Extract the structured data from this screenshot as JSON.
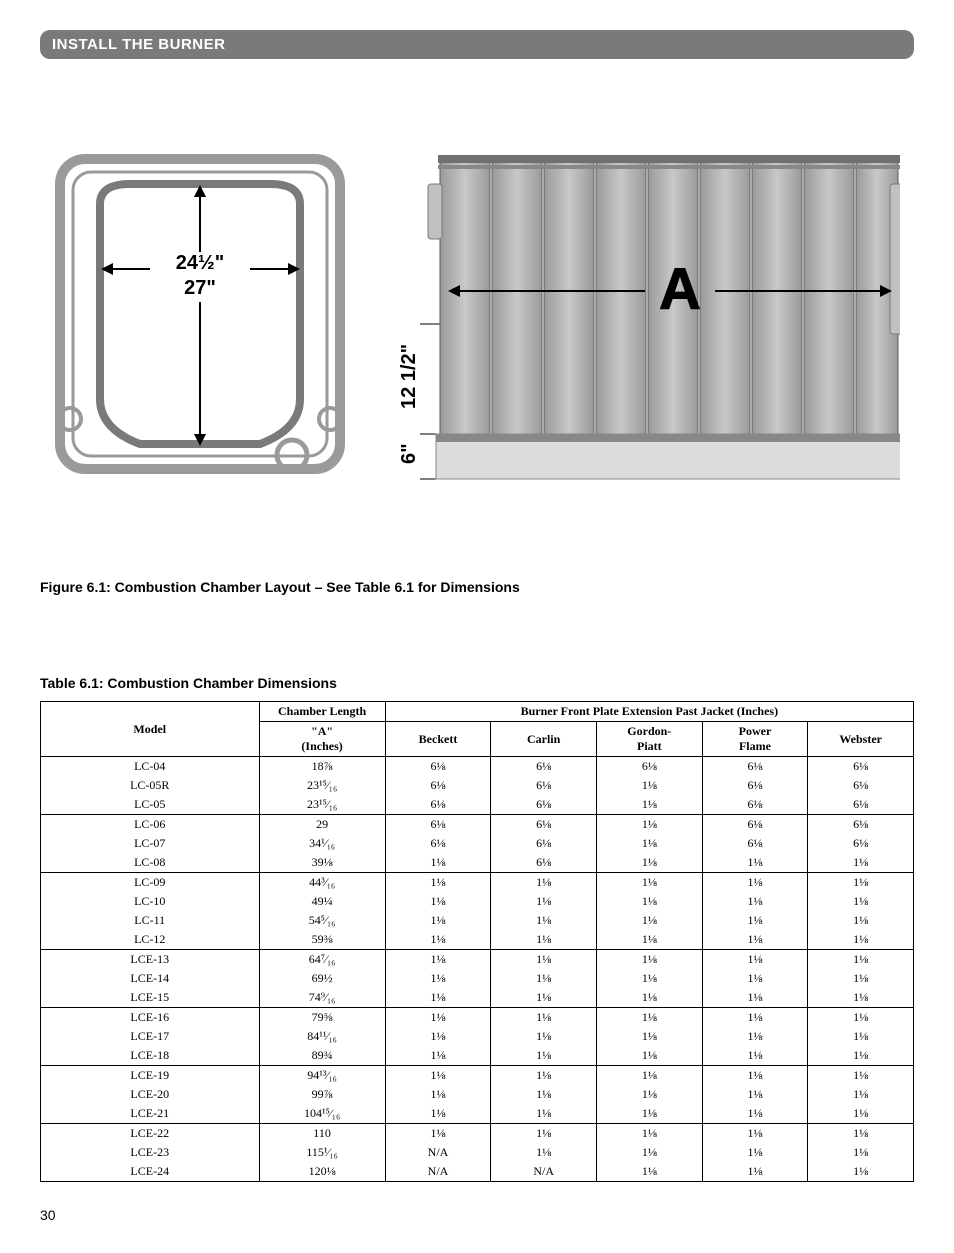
{
  "section_header": "INSTALL THE BURNER",
  "figure": {
    "caption": "Figure 6.1: Combustion Chamber Layout – See Table 6.1 for Dimensions",
    "left_diagram": {
      "dim_width": "24½\"",
      "dim_height": "27\"",
      "frame_color": "#888888",
      "arrow_color": "#000000"
    },
    "right_diagram": {
      "label_A": "A",
      "dim_bottom_left": "6\"",
      "dim_bottom_mid": "12 1/2\"",
      "bar_color": "#a8a8a8",
      "base_color": "#6a6a6a"
    }
  },
  "table": {
    "title": "Table 6.1:  Combustion Chamber Dimensions",
    "header_model": "Model",
    "header_chamber": "Chamber Length",
    "header_chamber_sub": "\"A\" (Inches)",
    "header_burner_span": "Burner Front Plate Extension Past Jacket (Inches)",
    "burner_cols": [
      "Beckett",
      "Carlin",
      "Gordon-Piatt",
      "Power Flame",
      "Webster"
    ],
    "rows": [
      {
        "sep": true,
        "model": "LC-04",
        "a": "18⅞",
        "v": [
          "6⅛",
          "6⅛",
          "6⅛",
          "6⅛",
          "6⅛"
        ]
      },
      {
        "sep": false,
        "model": "LC-05R",
        "a": "23¹⁵⁄₁₆",
        "v": [
          "6⅛",
          "6⅛",
          "1⅛",
          "6⅛",
          "6⅛"
        ]
      },
      {
        "sep": false,
        "model": "LC-05",
        "a": "23¹⁵⁄₁₆",
        "v": [
          "6⅛",
          "6⅛",
          "1⅛",
          "6⅛",
          "6⅛"
        ]
      },
      {
        "sep": true,
        "model": "LC-06",
        "a": "29",
        "v": [
          "6⅛",
          "6⅛",
          "1⅛",
          "6⅛",
          "6⅛"
        ]
      },
      {
        "sep": false,
        "model": "LC-07",
        "a": "34¹⁄₁₆",
        "v": [
          "6⅛",
          "6⅛",
          "1⅛",
          "6⅛",
          "6⅛"
        ]
      },
      {
        "sep": false,
        "model": "LC-08",
        "a": "39⅛",
        "v": [
          "1⅛",
          "6⅛",
          "1⅛",
          "1⅛",
          "1⅛"
        ]
      },
      {
        "sep": true,
        "model": "LC-09",
        "a": "44³⁄₁₆",
        "v": [
          "1⅛",
          "1⅛",
          "1⅛",
          "1⅛",
          "1⅛"
        ]
      },
      {
        "sep": false,
        "model": "LC-10",
        "a": "49¼",
        "v": [
          "1⅛",
          "1⅛",
          "1⅛",
          "1⅛",
          "1⅛"
        ]
      },
      {
        "sep": false,
        "model": "LC-11",
        "a": "54⁵⁄₁₆",
        "v": [
          "1⅛",
          "1⅛",
          "1⅛",
          "1⅛",
          "1⅛"
        ]
      },
      {
        "sep": false,
        "model": "LC-12",
        "a": "59⅜",
        "v": [
          "1⅛",
          "1⅛",
          "1⅛",
          "1⅛",
          "1⅛"
        ]
      },
      {
        "sep": true,
        "model": "LCE-13",
        "a": "64⁷⁄₁₆",
        "v": [
          "1⅛",
          "1⅛",
          "1⅛",
          "1⅛",
          "1⅛"
        ]
      },
      {
        "sep": false,
        "model": "LCE-14",
        "a": "69½",
        "v": [
          "1⅛",
          "1⅛",
          "1⅛",
          "1⅛",
          "1⅛"
        ]
      },
      {
        "sep": false,
        "model": "LCE-15",
        "a": "74⁹⁄₁₆",
        "v": [
          "1⅛",
          "1⅛",
          "1⅛",
          "1⅛",
          "1⅛"
        ]
      },
      {
        "sep": true,
        "model": "LCE-16",
        "a": "79⅝",
        "v": [
          "1⅛",
          "1⅛",
          "1⅛",
          "1⅛",
          "1⅛"
        ]
      },
      {
        "sep": false,
        "model": "LCE-17",
        "a": "84¹¹⁄₁₆",
        "v": [
          "1⅛",
          "1⅛",
          "1⅛",
          "1⅛",
          "1⅛"
        ]
      },
      {
        "sep": false,
        "model": "LCE-18",
        "a": "89¾",
        "v": [
          "1⅛",
          "1⅛",
          "1⅛",
          "1⅛",
          "1⅛"
        ]
      },
      {
        "sep": true,
        "model": "LCE-19",
        "a": "94¹³⁄₁₆",
        "v": [
          "1⅛",
          "1⅛",
          "1⅛",
          "1⅛",
          "1⅛"
        ]
      },
      {
        "sep": false,
        "model": "LCE-20",
        "a": "99⅞",
        "v": [
          "1⅛",
          "1⅛",
          "1⅛",
          "1⅛",
          "1⅛"
        ]
      },
      {
        "sep": false,
        "model": "LCE-21",
        "a": "104¹⁵⁄₁₆",
        "v": [
          "1⅛",
          "1⅛",
          "1⅛",
          "1⅛",
          "1⅛"
        ]
      },
      {
        "sep": true,
        "model": "LCE-22",
        "a": "110",
        "v": [
          "1⅛",
          "1⅛",
          "1⅛",
          "1⅛",
          "1⅛"
        ]
      },
      {
        "sep": false,
        "model": "LCE-23",
        "a": "115¹⁄₁₆",
        "v": [
          "N/A",
          "1⅛",
          "1⅛",
          "1⅛",
          "1⅛"
        ]
      },
      {
        "sep": false,
        "model": "LCE-24",
        "a": "120⅛",
        "v": [
          "N/A",
          "N/A",
          "1⅛",
          "1⅛",
          "1⅛"
        ]
      }
    ]
  },
  "page_number": "30"
}
